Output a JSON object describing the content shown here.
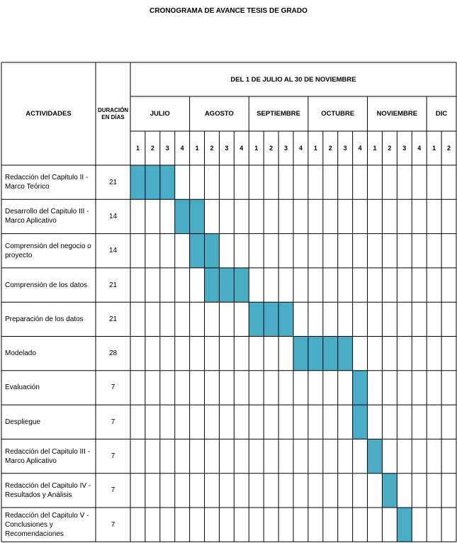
{
  "title": "CRONOGRAMA DE AVANCE TESIS DE GRADO",
  "headers": {
    "actividades": "ACTIVIDADES",
    "duracion": "DURACIÓN EN DÍAS",
    "periodo": "DEL 1 DE JULIO AL 30 DE NOVIEMBRE"
  },
  "months": [
    {
      "label": "JULIO",
      "weeks": 4
    },
    {
      "label": "AGOSTO",
      "weeks": 4
    },
    {
      "label": "SEPTIEMBRE",
      "weeks": 4
    },
    {
      "label": "OCTUBRE",
      "weeks": 4
    },
    {
      "label": "NOVIEMBRE",
      "weeks": 4
    },
    {
      "label": "DIC",
      "weeks": 2
    }
  ],
  "week_labels": [
    "1",
    "2",
    "3",
    "4",
    "1",
    "2",
    "3",
    "4",
    "1",
    "2",
    "3",
    "4",
    "1",
    "2",
    "3",
    "4",
    "1",
    "2",
    "3",
    "4",
    "1",
    "2"
  ],
  "bar_color": "#4bacc6",
  "activities": [
    {
      "name": "Redacción del Capitulo II - Marco Teórico",
      "duration": "21",
      "start_week": 0,
      "end_week": 2
    },
    {
      "name": "Desarrollo del Capitulo III - Marco Aplicativo",
      "duration": "14",
      "start_week": 3,
      "end_week": 4
    },
    {
      "name": "Comprensión del negocio o proyecto",
      "duration": "14",
      "start_week": 4,
      "end_week": 5
    },
    {
      "name": "Comprensión de los datos",
      "duration": "21",
      "start_week": 5,
      "end_week": 7
    },
    {
      "name": "Preparación de los datos",
      "duration": "21",
      "start_week": 8,
      "end_week": 10
    },
    {
      "name": "Modelado",
      "duration": "28",
      "start_week": 11,
      "end_week": 14
    },
    {
      "name": "Evaluación",
      "duration": "7",
      "start_week": 15,
      "end_week": 15
    },
    {
      "name": "Despliegue",
      "duration": "7",
      "start_week": 15,
      "end_week": 15
    },
    {
      "name": "Redacción del Capitulo III - Marco Aplicativo",
      "duration": "7",
      "start_week": 16,
      "end_week": 16
    },
    {
      "name": "Redacción del Capitulo IV - Resultados y Análisis",
      "duration": "7",
      "start_week": 17,
      "end_week": 17
    },
    {
      "name": "Redacción del Capitulo V - Conclusiones y Recomendaciones",
      "duration": "7",
      "start_week": 18,
      "end_week": 18
    }
  ]
}
